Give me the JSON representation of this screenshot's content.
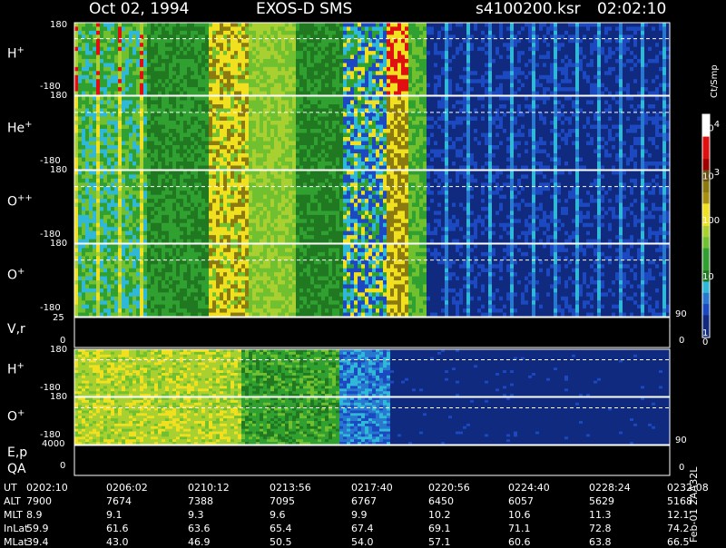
{
  "header": {
    "date": "Oct 02, 1994",
    "instrument": "EXOS-D SMS",
    "file": "s4100200.ksr",
    "time": "02:02:10"
  },
  "chart_data": {
    "type": "heatmap",
    "panels": [
      {
        "name": "H+",
        "label_base": "H",
        "label_sup": "+",
        "ymin": "-180",
        "ymax": "180"
      },
      {
        "name": "He+",
        "label_base": "He",
        "label_sup": "+",
        "ymin": "-180",
        "ymax": "180"
      },
      {
        "name": "O++",
        "label_base": "O",
        "label_sup": "++",
        "ymin": "-180",
        "ymax": "180"
      },
      {
        "name": "O+",
        "label_base": "O",
        "label_sup": "+",
        "ymin": "-180",
        "ymax": "180"
      },
      {
        "name": "V,r",
        "label_base": "V,r",
        "label_sup": "",
        "ymin": "0",
        "ymax": "25"
      },
      {
        "name": "H+ (2)",
        "label_base": "H",
        "label_sup": "+",
        "ymin": "-180",
        "ymax": "180"
      },
      {
        "name": "O+ (2)",
        "label_base": "O",
        "label_sup": "+",
        "ymin": "-180",
        "ymax": "180"
      },
      {
        "name": "E,p QA",
        "label_base": "E,p",
        "label_sup": "",
        "ymin": "0",
        "ymax": "4000"
      }
    ],
    "right_axis": {
      "o_plus_90": "90",
      "vr_90": "90",
      "vr_0": "0",
      "op2_90": "90",
      "ep_0": "0"
    },
    "colorbar": {
      "unit": "Ct/Smp",
      "labels": [
        {
          "base": "10",
          "exp": "4"
        },
        {
          "base": "10",
          "exp": "3"
        },
        {
          "base": "100",
          "exp": ""
        },
        {
          "base": "10",
          "exp": ""
        },
        {
          "base": "1",
          "exp": ""
        },
        {
          "base": "0",
          "exp": ""
        }
      ]
    },
    "side_note": "Feb-01 2AA32L",
    "rows": [
      {
        "label": "UT",
        "values": [
          "0202:10",
          "0206:02",
          "0210:12",
          "0213:56",
          "0217:40",
          "0220:56",
          "0224:40",
          "0228:24",
          "0232:08"
        ]
      },
      {
        "label": "ALT",
        "values": [
          "7900",
          "7674",
          "7388",
          "7095",
          "6767",
          "6450",
          "6057",
          "5629",
          "5168"
        ]
      },
      {
        "label": "MLT",
        "values": [
          "8.9",
          "9.1",
          "9.3",
          "9.6",
          "9.9",
          "10.2",
          "10.6",
          "11.3",
          "12.1"
        ]
      },
      {
        "label": "InLat",
        "values": [
          "59.9",
          "61.6",
          "63.6",
          "65.4",
          "67.4",
          "69.1",
          "71.1",
          "72.8",
          "74.2"
        ]
      },
      {
        "label": "MLat",
        "values": [
          "39.4",
          "43.0",
          "46.9",
          "50.5",
          "54.0",
          "57.1",
          "60.6",
          "63.8",
          "66.5"
        ]
      }
    ]
  }
}
